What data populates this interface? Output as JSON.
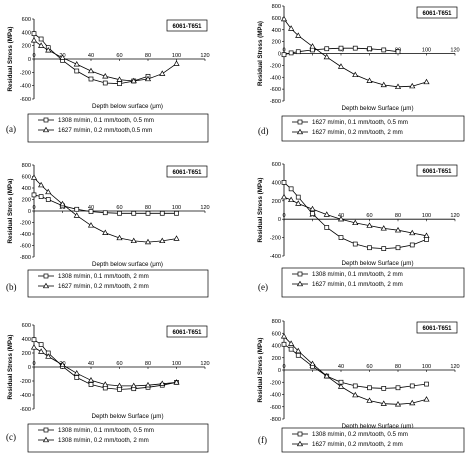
{
  "chart_data": [
    {
      "type": "line",
      "panel_label": "(a)",
      "material": "6061-T651",
      "xlabel": "Depth below surface (μm)",
      "ylabel": "Residual Stress (MPa)",
      "xlim": [
        0,
        120
      ],
      "ylim": [
        -600,
        600
      ],
      "x_ticks": [
        "0",
        "20",
        "40",
        "60",
        "80",
        "100",
        "120"
      ],
      "y_ticks": [
        "600",
        "400",
        "200",
        "0",
        "-200",
        "-400",
        "-600"
      ],
      "series": [
        {
          "name": "1308 m/min, 0.1 mm/tooth, 0.5 mm",
          "marker": "square",
          "x": [
            0,
            5,
            10,
            20,
            30,
            40,
            50,
            60,
            70,
            80
          ],
          "y": [
            380,
            300,
            170,
            -20,
            -180,
            -300,
            -360,
            -370,
            -330,
            -260
          ]
        },
        {
          "name": "1627 m/min, 0.2 mm/tooth,0.5 mm",
          "marker": "triangle",
          "x": [
            0,
            5,
            10,
            20,
            30,
            40,
            50,
            60,
            70,
            80,
            90,
            100
          ],
          "y": [
            280,
            200,
            130,
            20,
            -80,
            -180,
            -260,
            -310,
            -330,
            -300,
            -220,
            -70
          ]
        }
      ]
    },
    {
      "type": "line",
      "panel_label": "(b)",
      "material": "6061-T651",
      "xlabel": "Depth below surface (μm)",
      "ylabel": "Residual Stress (MPa)",
      "xlim": [
        0,
        120
      ],
      "ylim": [
        -800,
        800
      ],
      "x_ticks": [
        "0",
        "20",
        "40",
        "60",
        "80",
        "100",
        "120"
      ],
      "y_ticks": [
        "800",
        "600",
        "400",
        "200",
        "0",
        "-200",
        "-400",
        "-600",
        "-800"
      ],
      "series": [
        {
          "name": "1308 m/min, 0.1 mm/tooth, 2 mm",
          "marker": "square",
          "x": [
            0,
            5,
            10,
            20,
            30,
            40,
            50,
            60,
            70,
            80,
            90,
            100
          ],
          "y": [
            280,
            250,
            200,
            90,
            30,
            -10,
            -30,
            -40,
            -40,
            -40,
            -40,
            -40
          ]
        },
        {
          "name": "1627 m/min, 0.2 mm/tooth, 2 mm",
          "marker": "triangle",
          "x": [
            0,
            5,
            10,
            20,
            30,
            40,
            50,
            60,
            70,
            80,
            90,
            100
          ],
          "y": [
            580,
            450,
            330,
            120,
            -80,
            -250,
            -380,
            -470,
            -520,
            -540,
            -520,
            -480
          ]
        }
      ]
    },
    {
      "type": "line",
      "panel_label": "(c)",
      "material": "6061-T651",
      "xlabel": "Depth below Surface (μm)",
      "ylabel": "Residual Stress (MPa)",
      "xlim": [
        0,
        120
      ],
      "ylim": [
        -600,
        600
      ],
      "x_ticks": [
        "0",
        "20",
        "40",
        "60",
        "80",
        "100",
        "120"
      ],
      "y_ticks": [
        "600",
        "400",
        "200",
        "0",
        "-200",
        "-400",
        "-600"
      ],
      "series": [
        {
          "name": "1308 m/min, 0.1 mm/tooth, 0.5 mm",
          "marker": "square",
          "x": [
            0,
            5,
            10,
            20,
            30,
            40,
            50,
            60,
            70,
            80,
            90,
            100
          ],
          "y": [
            390,
            320,
            200,
            10,
            -150,
            -250,
            -300,
            -320,
            -310,
            -290,
            -260,
            -220
          ]
        },
        {
          "name": "1308 m/min, 0.2 mm/tooth, 2 mm",
          "marker": "triangle",
          "x": [
            0,
            5,
            10,
            20,
            30,
            40,
            50,
            60,
            70,
            80,
            90,
            100
          ],
          "y": [
            280,
            220,
            150,
            30,
            -90,
            -190,
            -250,
            -270,
            -270,
            -260,
            -240,
            -220
          ]
        }
      ]
    },
    {
      "type": "line",
      "panel_label": "(d)",
      "material": "6061-T651",
      "xlabel": "Depth below Surface (μm)",
      "ylabel": "Residual Stress (MPa)",
      "xlim": [
        0,
        120
      ],
      "ylim": [
        -800,
        800
      ],
      "x_ticks": [
        "0",
        "20",
        "40",
        "60",
        "80",
        "100",
        "120"
      ],
      "y_ticks": [
        "800",
        "600",
        "400",
        "200",
        "0",
        "-200",
        "-400",
        "-600",
        "-800"
      ],
      "series": [
        {
          "name": "1627 m/min, 0.1 mm/tooth, 0.5 mm",
          "marker": "square",
          "x": [
            0,
            5,
            10,
            20,
            30,
            40,
            50,
            60,
            70,
            80
          ],
          "y": [
            -20,
            10,
            30,
            60,
            80,
            90,
            90,
            80,
            60,
            30
          ]
        },
        {
          "name": "1627 m/min, 0.2 mm/tooth, 2 mm",
          "marker": "triangle",
          "x": [
            0,
            5,
            10,
            20,
            30,
            40,
            50,
            60,
            70,
            80,
            90,
            100
          ],
          "y": [
            580,
            420,
            300,
            120,
            -60,
            -220,
            -360,
            -460,
            -530,
            -560,
            -550,
            -480
          ]
        }
      ]
    },
    {
      "type": "line",
      "panel_label": "(e)",
      "material": "6061-T651",
      "xlabel": "Depth below Surface (μm)",
      "ylabel": "Residual Stress (MPa)",
      "xlim": [
        0,
        120
      ],
      "ylim": [
        -400,
        600
      ],
      "x_ticks": [
        "0",
        "20",
        "40",
        "60",
        "80",
        "100",
        "120"
      ],
      "y_ticks": [
        "600",
        "400",
        "200",
        "0",
        "-200",
        "-400"
      ],
      "series": [
        {
          "name": "1308 m/min, 0.1 mm/tooth, 2 mm",
          "marker": "square",
          "x": [
            0,
            5,
            10,
            20,
            30,
            40,
            50,
            60,
            70,
            80,
            90,
            100
          ],
          "y": [
            400,
            330,
            240,
            60,
            -90,
            -200,
            -270,
            -310,
            -320,
            -310,
            -280,
            -220
          ]
        },
        {
          "name": "1627 m/min, 0.1 mm/tooth, 2 mm",
          "marker": "triangle",
          "x": [
            0,
            5,
            10,
            20,
            30,
            40,
            50,
            60,
            70,
            80,
            90,
            100
          ],
          "y": [
            240,
            210,
            170,
            110,
            50,
            0,
            -40,
            -70,
            -100,
            -120,
            -150,
            -180
          ]
        }
      ]
    },
    {
      "type": "line",
      "panel_label": "(f)",
      "material": "6061-T651",
      "xlabel": "Depth below Surface (μm)",
      "ylabel": "Residual Stress (MPa)",
      "xlim": [
        0,
        120
      ],
      "ylim": [
        -800,
        800
      ],
      "x_ticks": [
        "0",
        "20",
        "40",
        "60",
        "80",
        "100",
        "120"
      ],
      "y_ticks": [
        "800",
        "600",
        "400",
        "200",
        "0",
        "-200",
        "-400",
        "-600",
        "-800"
      ],
      "series": [
        {
          "name": "1308 m/min, 0.2 mm/tooth, 0.5 mm",
          "marker": "square",
          "x": [
            0,
            5,
            10,
            20,
            30,
            40,
            50,
            60,
            70,
            80,
            90,
            100
          ],
          "y": [
            420,
            340,
            240,
            60,
            -100,
            -200,
            -260,
            -290,
            -300,
            -290,
            -260,
            -230
          ]
        },
        {
          "name": "1627 m/min, 0.2 mm/tooth, 2 mm",
          "marker": "triangle",
          "x": [
            0,
            5,
            10,
            20,
            30,
            40,
            50,
            60,
            70,
            80,
            90,
            100
          ],
          "y": [
            550,
            430,
            310,
            100,
            -100,
            -270,
            -410,
            -500,
            -550,
            -560,
            -540,
            -480
          ]
        }
      ]
    }
  ]
}
